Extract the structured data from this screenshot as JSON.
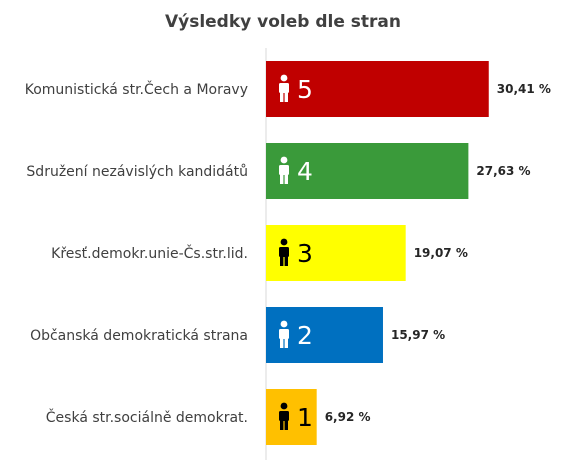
{
  "chart_data": {
    "type": "bar",
    "orientation": "horizontal",
    "title": "Výsledky voleb dle stran",
    "xlabel": "",
    "ylabel": "",
    "xlim": [
      0,
      40
    ],
    "grid": false,
    "legend": "none",
    "categories": [
      "Komunistická str.Čech a Moravy",
      "Sdružení nezávislých kandidátů",
      "Křesť.demokr.unie-Čs.str.lid.",
      "Občanská demokratická strana",
      "Česká str.sociálně demokrat."
    ],
    "values": [
      30.41,
      27.63,
      19.07,
      15.97,
      6.92
    ],
    "value_labels": [
      "30,41 %",
      "27,63 %",
      "19,07 %",
      "15,97 %",
      "6,92 %"
    ],
    "seats": [
      "5",
      "4",
      "3",
      "2",
      "1"
    ],
    "bar_colors": [
      "#c00000",
      "#3a9a3a",
      "#ffff00",
      "#0070c0",
      "#ffc000"
    ],
    "seat_icon_colors": [
      "#ffffff",
      "#ffffff",
      "#000000",
      "#ffffff",
      "#000000"
    ],
    "seat_icon": "person-icon"
  }
}
